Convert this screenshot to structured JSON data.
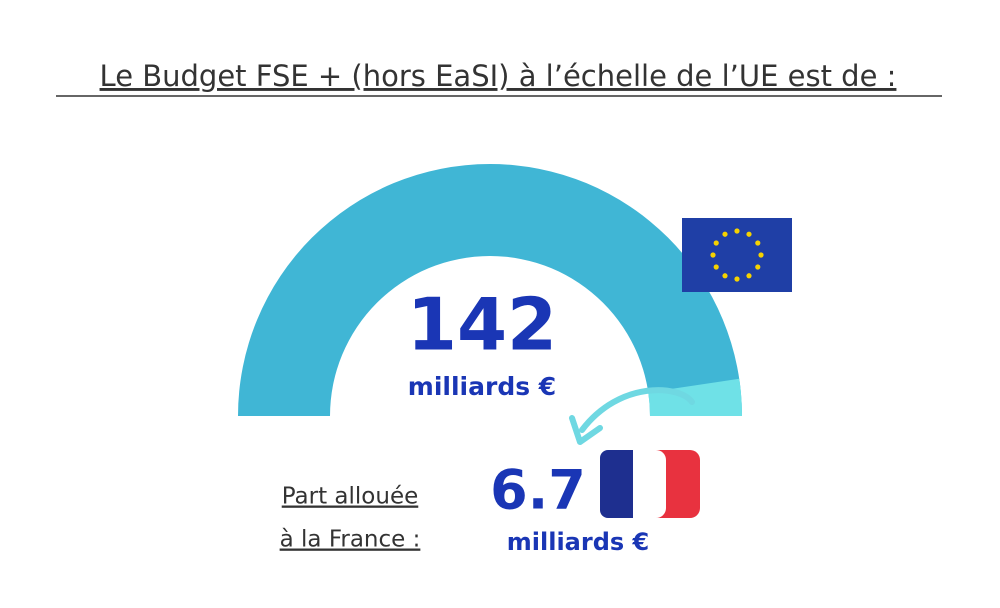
{
  "chart_data": {
    "type": "gauge",
    "title": "Le Budget FSE + (hors EaSI) à l’échelle de l’UE est de  :",
    "total": 142,
    "total_unit": "milliards €",
    "part_label_line1": "Part allouée",
    "part_label_line2": "à la France :",
    "part": 6.7,
    "part_unit": "milliards €",
    "total_color": "#40b6d5",
    "part_color": "#6fe1e7"
  }
}
